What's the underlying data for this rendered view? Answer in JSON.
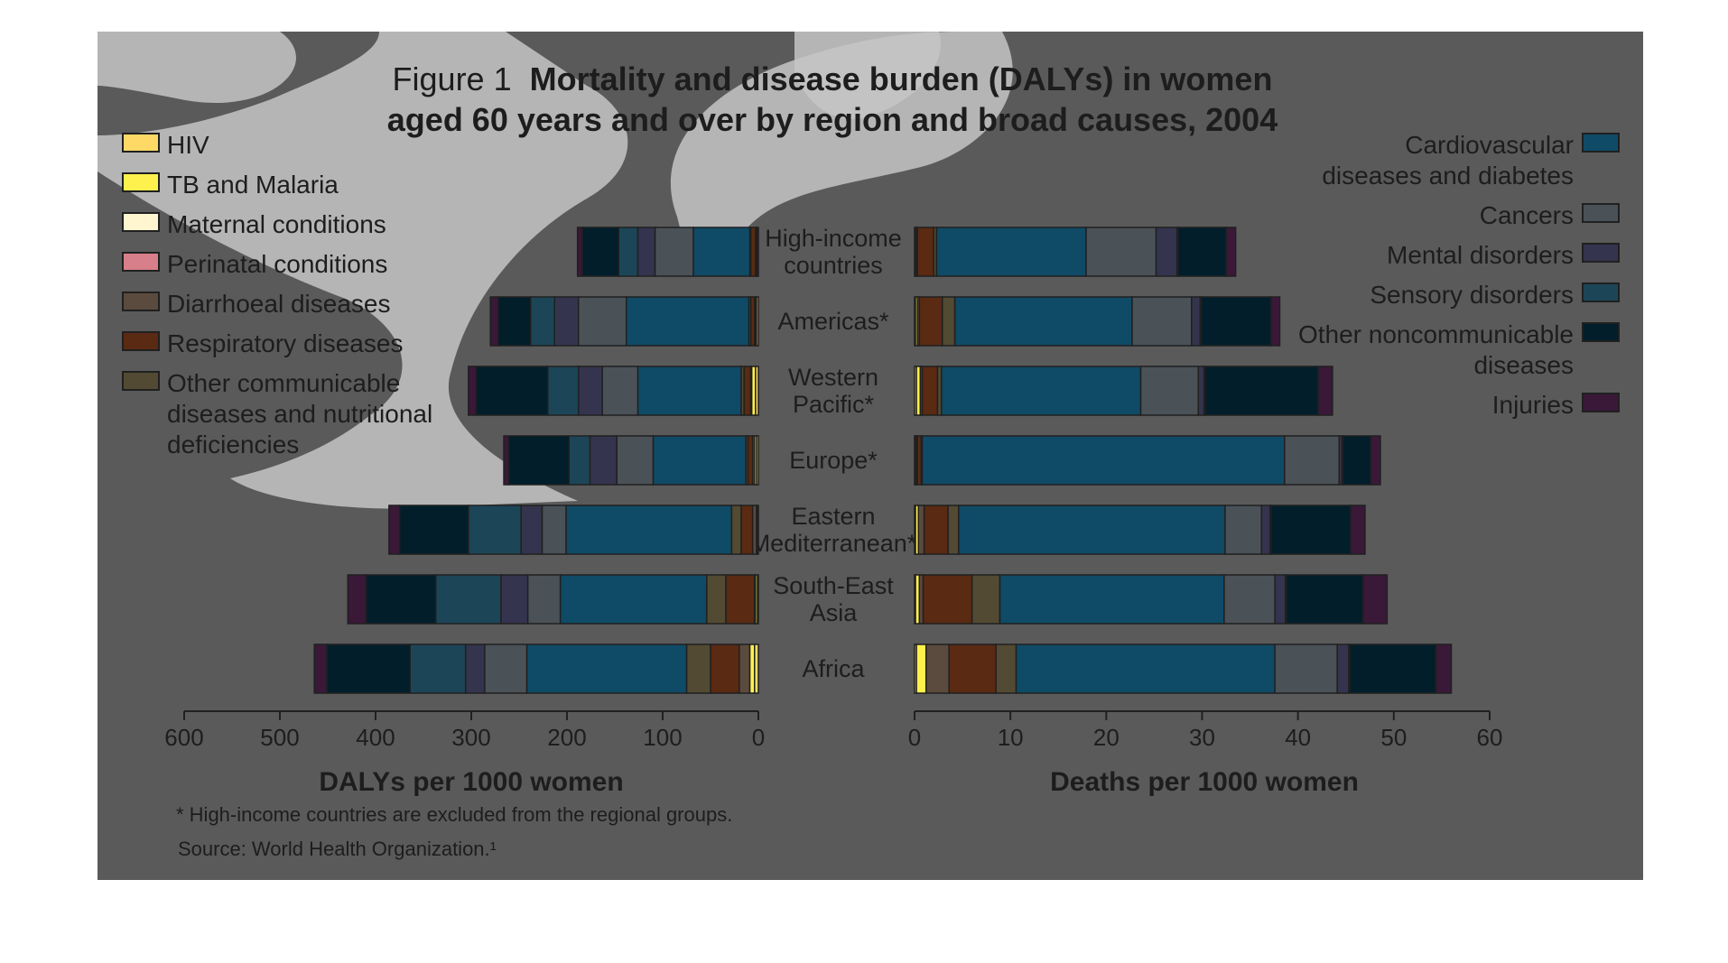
{
  "title": {
    "prefix": "Figure 1",
    "line1": "Mortality and disease burden (DALYs) in women",
    "line2": "aged 60 years and over by region and broad causes, 2004"
  },
  "colors": {
    "background": "#5a5a5a",
    "overlay": "#c6c6c6",
    "bar_outline": "#202020",
    "text": "#1d1d1d"
  },
  "legend_left": [
    {
      "label": [
        "HIV"
      ],
      "color": "#ffd966"
    },
    {
      "label": [
        "TB and Malaria"
      ],
      "color": "#fff14d"
    },
    {
      "label": [
        "Maternal conditions"
      ],
      "color": "#fff6d0"
    },
    {
      "label": [
        "Perinatal conditions"
      ],
      "color": "#d77f8a"
    },
    {
      "label": [
        "Diarrhoeal diseases"
      ],
      "color": "#5b4a3e"
    },
    {
      "label": [
        "Respiratory diseases"
      ],
      "color": "#5a2a12"
    },
    {
      "label": [
        "Other communicable",
        "diseases and nutritional",
        "deficiencies"
      ],
      "color": "#524a33"
    }
  ],
  "legend_right": [
    {
      "label": [
        "Cardiovascular",
        "diseases and diabetes"
      ],
      "color": "#0f4b66"
    },
    {
      "label": [
        "Cancers"
      ],
      "color": "#4a5258"
    },
    {
      "label": [
        "Mental disorders"
      ],
      "color": "#35344e"
    },
    {
      "label": [
        "Sensory disorders"
      ],
      "color": "#1c4658"
    },
    {
      "label": [
        "Other noncommunicable",
        "diseases"
      ],
      "color": "#021e2b"
    },
    {
      "label": [
        "Injuries"
      ],
      "color": "#3a1838"
    }
  ],
  "footnote": "* High-income countries are excluded from the regional groups.",
  "source": "Source: World Health Organization.¹",
  "chart_data": [
    {
      "type": "bar",
      "orientation": "horizontal",
      "stacked": true,
      "xlabel": "DALYs per 1000 women",
      "xlim": [
        0,
        600
      ],
      "x_direction": "reversed",
      "xticks": [
        600,
        500,
        400,
        300,
        200,
        100,
        0
      ],
      "categories": [
        [
          "High-income",
          "countries"
        ],
        [
          "Americas*"
        ],
        [
          "Western",
          "Pacific*"
        ],
        [
          "Europe*"
        ],
        [
          "Eastern",
          "Mediterranean*"
        ],
        [
          "South-East",
          "Asia"
        ],
        [
          "Africa"
        ]
      ],
      "series": [
        {
          "name": "HIV",
          "values": [
            1,
            2,
            3,
            2,
            1,
            1,
            4
          ]
        },
        {
          "name": "TB and Malaria",
          "values": [
            1,
            1,
            4,
            2,
            1,
            2,
            5
          ]
        },
        {
          "name": "Maternal conditions",
          "values": [
            0,
            0,
            0,
            0,
            0,
            0,
            0
          ]
        },
        {
          "name": "Perinatal conditions",
          "values": [
            0,
            0,
            0,
            0,
            0,
            0,
            0
          ]
        },
        {
          "name": "Diarrhoeal diseases",
          "values": [
            1,
            1,
            1,
            2,
            4,
            1,
            11
          ]
        },
        {
          "name": "Respiratory diseases",
          "values": [
            5,
            4,
            7,
            5,
            12,
            30,
            30
          ]
        },
        {
          "name": "Other communicable diseases",
          "values": [
            1,
            2,
            3,
            2,
            10,
            20,
            25
          ]
        },
        {
          "name": "Cardiovascular diseases and diabetes",
          "values": [
            59,
            128,
            108,
            97,
            173,
            153,
            167
          ]
        },
        {
          "name": "Cancers",
          "values": [
            40,
            50,
            37,
            38,
            25,
            34,
            44
          ]
        },
        {
          "name": "Mental disorders",
          "values": [
            18,
            25,
            25,
            28,
            22,
            28,
            20
          ]
        },
        {
          "name": "Sensory disorders",
          "values": [
            20,
            25,
            32,
            22,
            55,
            68,
            58
          ]
        },
        {
          "name": "Other noncommunicable diseases",
          "values": [
            38,
            34,
            75,
            63,
            72,
            73,
            87
          ]
        },
        {
          "name": "Injuries",
          "values": [
            5,
            8,
            8,
            5,
            11,
            19,
            13
          ]
        }
      ]
    },
    {
      "type": "bar",
      "orientation": "horizontal",
      "stacked": true,
      "xlabel": "Deaths per 1000 women",
      "xlim": [
        0,
        60
      ],
      "xticks": [
        0,
        10,
        20,
        30,
        40,
        50,
        60
      ],
      "categories": [
        [
          "High-income",
          "countries"
        ],
        [
          "Americas*"
        ],
        [
          "Western",
          "Pacific*"
        ],
        [
          "Europe*"
        ],
        [
          "Eastern",
          "Mediterranean*"
        ],
        [
          "South-East",
          "Asia"
        ],
        [
          "Africa"
        ]
      ],
      "series": [
        {
          "name": "HIV",
          "values": [
            0.1,
            0.1,
            0.2,
            0.1,
            0.1,
            0.1,
            0.2
          ]
        },
        {
          "name": "TB and Malaria",
          "values": [
            0.1,
            0.2,
            0.4,
            0.1,
            0.3,
            0.4,
            1.0
          ]
        },
        {
          "name": "Maternal conditions",
          "values": [
            0,
            0,
            0,
            0,
            0,
            0,
            0
          ]
        },
        {
          "name": "Perinatal conditions",
          "values": [
            0,
            0,
            0,
            0,
            0,
            0,
            0
          ]
        },
        {
          "name": "Diarrhoeal diseases",
          "values": [
            0.1,
            0.2,
            0.2,
            0.1,
            0.6,
            0.4,
            2.4
          ]
        },
        {
          "name": "Respiratory diseases",
          "values": [
            1.7,
            2.4,
            1.6,
            0.4,
            2.5,
            5.1,
            4.9
          ]
        },
        {
          "name": "Other communicable diseases",
          "values": [
            0.3,
            1.3,
            0.4,
            0.1,
            1.1,
            2.9,
            2.1
          ]
        },
        {
          "name": "Cardiovascular diseases and diabetes",
          "values": [
            15.6,
            18.5,
            20.8,
            37.8,
            27.8,
            23.4,
            27.0
          ]
        },
        {
          "name": "Cancers",
          "values": [
            7.3,
            6.2,
            6.0,
            5.7,
            3.8,
            5.3,
            6.5
          ]
        },
        {
          "name": "Mental disorders",
          "values": [
            2.2,
            0.9,
            0.6,
            0.3,
            0.9,
            1.1,
            1.2
          ]
        },
        {
          "name": "Sensory disorders",
          "values": [
            0.1,
            0.1,
            0.1,
            0.1,
            0.1,
            0.1,
            0.1
          ]
        },
        {
          "name": "Other noncommunicable diseases",
          "values": [
            5.0,
            7.3,
            11.8,
            2.9,
            8.3,
            8.0,
            9.0
          ]
        },
        {
          "name": "Injuries",
          "values": [
            1.0,
            0.9,
            1.5,
            1.0,
            1.5,
            2.5,
            1.6
          ]
        }
      ]
    }
  ]
}
